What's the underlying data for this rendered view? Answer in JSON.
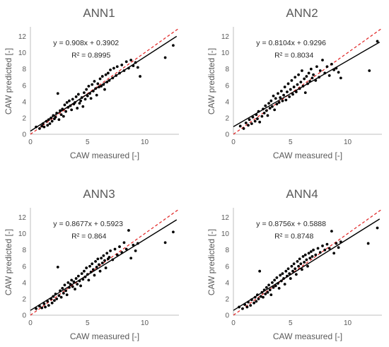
{
  "chart_data": [
    {
      "type": "scatter",
      "title": "ANN1",
      "xlabel": "CAW measured [-]",
      "ylabel": "CAW predicted [-]",
      "xlim": [
        0,
        13
      ],
      "ylim": [
        0,
        13
      ],
      "xticks": [
        "0",
        "5",
        "10"
      ],
      "yticks": [
        "0",
        "2",
        "4",
        "6",
        "8",
        "10",
        "12"
      ],
      "grid": false,
      "trendline": {
        "slope": 0.908,
        "intercept": 0.3902
      },
      "identity_line": true,
      "annotation": {
        "equation": "y = 0.908x + 0.3902",
        "r2": "R² = 0.8995"
      },
      "points": [
        [
          0.5,
          0.9
        ],
        [
          0.8,
          0.7
        ],
        [
          1.0,
          1.0
        ],
        [
          1.1,
          1.3
        ],
        [
          1.2,
          0.9
        ],
        [
          1.4,
          1.6
        ],
        [
          1.5,
          1.1
        ],
        [
          1.6,
          1.8
        ],
        [
          1.7,
          1.3
        ],
        [
          1.8,
          2.0
        ],
        [
          1.9,
          1.6
        ],
        [
          2.0,
          2.3
        ],
        [
          2.1,
          1.9
        ],
        [
          2.2,
          2.1
        ],
        [
          2.3,
          2.6
        ],
        [
          2.4,
          5.0
        ],
        [
          2.5,
          1.8
        ],
        [
          2.6,
          2.9
        ],
        [
          2.7,
          2.4
        ],
        [
          2.8,
          3.1
        ],
        [
          2.9,
          2.2
        ],
        [
          3.0,
          3.6
        ],
        [
          3.1,
          2.8
        ],
        [
          3.2,
          3.9
        ],
        [
          3.3,
          3.3
        ],
        [
          3.4,
          4.1
        ],
        [
          3.5,
          3.5
        ],
        [
          3.6,
          3.0
        ],
        [
          3.7,
          4.3
        ],
        [
          3.8,
          3.7
        ],
        [
          3.9,
          3.9
        ],
        [
          4.0,
          4.6
        ],
        [
          4.1,
          3.2
        ],
        [
          4.2,
          4.9
        ],
        [
          4.3,
          3.8
        ],
        [
          4.4,
          4.1
        ],
        [
          4.5,
          4.5
        ],
        [
          4.6,
          3.4
        ],
        [
          4.7,
          5.1
        ],
        [
          4.8,
          4.3
        ],
        [
          4.9,
          5.5
        ],
        [
          5.0,
          4.7
        ],
        [
          5.1,
          5.9
        ],
        [
          5.2,
          5.0
        ],
        [
          5.3,
          4.4
        ],
        [
          5.4,
          6.1
        ],
        [
          5.5,
          5.3
        ],
        [
          5.6,
          6.5
        ],
        [
          5.7,
          5.6
        ],
        [
          5.8,
          4.8
        ],
        [
          5.9,
          6.2
        ],
        [
          6.0,
          5.8
        ],
        [
          6.1,
          6.8
        ],
        [
          6.2,
          5.9
        ],
        [
          6.3,
          7.1
        ],
        [
          6.4,
          6.1
        ],
        [
          6.5,
          5.5
        ],
        [
          6.6,
          7.3
        ],
        [
          6.7,
          6.4
        ],
        [
          6.8,
          7.5
        ],
        [
          6.9,
          6.6
        ],
        [
          7.0,
          7.9
        ],
        [
          7.2,
          6.9
        ],
        [
          7.3,
          8.1
        ],
        [
          7.5,
          7.2
        ],
        [
          7.6,
          8.3
        ],
        [
          7.8,
          7.5
        ],
        [
          8.0,
          8.5
        ],
        [
          8.2,
          7.8
        ],
        [
          8.4,
          8.9
        ],
        [
          8.6,
          8.1
        ],
        [
          8.8,
          9.1
        ],
        [
          9.0,
          8.4
        ],
        [
          9.2,
          8.8
        ],
        [
          9.4,
          8.2
        ],
        [
          9.6,
          7.1
        ],
        [
          11.8,
          9.4
        ],
        [
          12.5,
          10.9
        ]
      ]
    },
    {
      "type": "scatter",
      "title": "ANN2",
      "xlabel": "CAW measured [-]",
      "ylabel": "CAW predicted [-]",
      "xlim": [
        0,
        13
      ],
      "ylim": [
        0,
        13
      ],
      "xticks": [
        "0",
        "5",
        "10"
      ],
      "yticks": [
        "0",
        "2",
        "4",
        "6",
        "8",
        "10",
        "12"
      ],
      "grid": false,
      "trendline": {
        "slope": 0.8104,
        "intercept": 0.9296
      },
      "identity_line": true,
      "annotation": {
        "equation": "y = 0.8104x + 0.9296",
        "r2": "R² = 0.8034"
      },
      "points": [
        [
          0.6,
          1.0
        ],
        [
          0.9,
          0.7
        ],
        [
          1.1,
          1.4
        ],
        [
          1.3,
          1.1
        ],
        [
          1.4,
          1.8
        ],
        [
          1.6,
          1.3
        ],
        [
          1.7,
          2.1
        ],
        [
          1.9,
          1.6
        ],
        [
          2.0,
          2.4
        ],
        [
          2.1,
          1.9
        ],
        [
          2.2,
          2.8
        ],
        [
          2.3,
          1.5
        ],
        [
          2.5,
          2.2
        ],
        [
          2.6,
          3.1
        ],
        [
          2.7,
          2.6
        ],
        [
          2.8,
          3.5
        ],
        [
          2.9,
          2.9
        ],
        [
          3.0,
          2.3
        ],
        [
          3.1,
          3.8
        ],
        [
          3.2,
          3.2
        ],
        [
          3.3,
          4.1
        ],
        [
          3.4,
          3.4
        ],
        [
          3.5,
          4.7
        ],
        [
          3.6,
          3.0
        ],
        [
          3.7,
          4.4
        ],
        [
          3.8,
          3.7
        ],
        [
          3.9,
          5.0
        ],
        [
          4.0,
          3.9
        ],
        [
          4.1,
          4.5
        ],
        [
          4.2,
          5.3
        ],
        [
          4.3,
          4.1
        ],
        [
          4.4,
          4.8
        ],
        [
          4.5,
          5.8
        ],
        [
          4.6,
          4.2
        ],
        [
          4.7,
          5.2
        ],
        [
          4.8,
          6.2
        ],
        [
          4.9,
          4.6
        ],
        [
          5.0,
          5.5
        ],
        [
          5.1,
          6.6
        ],
        [
          5.2,
          4.9
        ],
        [
          5.3,
          5.8
        ],
        [
          5.4,
          7.0
        ],
        [
          5.5,
          5.2
        ],
        [
          5.6,
          6.1
        ],
        [
          5.7,
          7.3
        ],
        [
          5.8,
          5.6
        ],
        [
          5.9,
          6.4
        ],
        [
          6.0,
          7.8
        ],
        [
          6.1,
          5.9
        ],
        [
          6.2,
          6.8
        ],
        [
          6.3,
          5.1
        ],
        [
          6.4,
          7.1
        ],
        [
          6.5,
          6.2
        ],
        [
          6.6,
          7.5
        ],
        [
          6.7,
          6.5
        ],
        [
          6.8,
          8.0
        ],
        [
          6.9,
          6.9
        ],
        [
          7.0,
          7.3
        ],
        [
          7.2,
          6.6
        ],
        [
          7.3,
          8.3
        ],
        [
          7.5,
          7.0
        ],
        [
          7.6,
          7.8
        ],
        [
          7.8,
          9.1
        ],
        [
          8.0,
          7.5
        ],
        [
          8.2,
          8.3
        ],
        [
          8.4,
          7.2
        ],
        [
          8.6,
          8.6
        ],
        [
          8.8,
          7.9
        ],
        [
          9.0,
          8.1
        ],
        [
          9.2,
          7.6
        ],
        [
          9.4,
          6.9
        ],
        [
          11.9,
          7.8
        ],
        [
          12.6,
          11.4
        ]
      ]
    },
    {
      "type": "scatter",
      "title": "ANN3",
      "xlabel": "CAW measured [-]",
      "ylabel": "CAW predicted [-]",
      "xlim": [
        0,
        13
      ],
      "ylim": [
        0,
        13
      ],
      "xticks": [
        "0",
        "5",
        "10"
      ],
      "yticks": [
        "0",
        "2",
        "4",
        "6",
        "8",
        "10",
        "12"
      ],
      "grid": false,
      "trendline": {
        "slope": 0.8677,
        "intercept": 0.5923
      },
      "identity_line": true,
      "annotation": {
        "equation": "y = 0.8677x + 0.5923",
        "r2": "R² = 0.864"
      },
      "points": [
        [
          0.5,
          0.8
        ],
        [
          0.8,
          1.1
        ],
        [
          1.0,
          0.9
        ],
        [
          1.2,
          1.4
        ],
        [
          1.3,
          1.0
        ],
        [
          1.5,
          1.7
        ],
        [
          1.6,
          1.2
        ],
        [
          1.8,
          2.0
        ],
        [
          1.9,
          1.5
        ],
        [
          2.0,
          2.3
        ],
        [
          2.1,
          1.8
        ],
        [
          2.2,
          2.6
        ],
        [
          2.3,
          2.0
        ],
        [
          2.4,
          5.9
        ],
        [
          2.5,
          2.4
        ],
        [
          2.6,
          3.0
        ],
        [
          2.7,
          2.2
        ],
        [
          2.8,
          3.3
        ],
        [
          2.9,
          2.7
        ],
        [
          3.0,
          3.7
        ],
        [
          3.1,
          3.0
        ],
        [
          3.2,
          2.5
        ],
        [
          3.3,
          4.0
        ],
        [
          3.4,
          3.4
        ],
        [
          3.5,
          3.8
        ],
        [
          3.6,
          4.3
        ],
        [
          3.7,
          3.5
        ],
        [
          3.8,
          4.1
        ],
        [
          3.9,
          3.2
        ],
        [
          4.0,
          4.5
        ],
        [
          4.1,
          3.8
        ],
        [
          4.2,
          4.8
        ],
        [
          4.3,
          4.2
        ],
        [
          4.4,
          3.6
        ],
        [
          4.5,
          5.1
        ],
        [
          4.6,
          4.4
        ],
        [
          4.7,
          5.4
        ],
        [
          4.8,
          4.7
        ],
        [
          4.9,
          5.8
        ],
        [
          5.0,
          5.0
        ],
        [
          5.1,
          4.3
        ],
        [
          5.2,
          6.0
        ],
        [
          5.3,
          5.3
        ],
        [
          5.4,
          6.3
        ],
        [
          5.5,
          5.6
        ],
        [
          5.6,
          4.9
        ],
        [
          5.7,
          6.6
        ],
        [
          5.8,
          5.9
        ],
        [
          5.9,
          6.9
        ],
        [
          6.0,
          6.2
        ],
        [
          6.1,
          5.4
        ],
        [
          6.2,
          7.0
        ],
        [
          6.3,
          6.4
        ],
        [
          6.4,
          7.3
        ],
        [
          6.5,
          6.7
        ],
        [
          6.6,
          5.8
        ],
        [
          6.7,
          7.6
        ],
        [
          6.8,
          6.9
        ],
        [
          6.9,
          7.1
        ],
        [
          7.0,
          7.9
        ],
        [
          7.2,
          6.8
        ],
        [
          7.4,
          8.1
        ],
        [
          7.6,
          7.4
        ],
        [
          7.8,
          8.4
        ],
        [
          8.0,
          7.7
        ],
        [
          8.2,
          8.9
        ],
        [
          8.4,
          8.1
        ],
        [
          8.6,
          10.4
        ],
        [
          8.8,
          7.0
        ],
        [
          9.0,
          8.6
        ],
        [
          9.2,
          7.9
        ],
        [
          9.4,
          8.8
        ],
        [
          11.8,
          8.9
        ],
        [
          12.5,
          10.2
        ]
      ]
    },
    {
      "type": "scatter",
      "title": "ANN4",
      "xlabel": "CAW measured [-]",
      "ylabel": "CAW predicted [-]",
      "xlim": [
        0,
        13
      ],
      "ylim": [
        0,
        13
      ],
      "xticks": [
        "0",
        "5",
        "10"
      ],
      "yticks": [
        "0",
        "2",
        "4",
        "6",
        "8",
        "10",
        "12"
      ],
      "grid": false,
      "trendline": {
        "slope": 0.8756,
        "intercept": 0.5888
      },
      "identity_line": true,
      "annotation": {
        "equation": "y = 0.8756x + 0.5888",
        "r2": "R² = 0.8748"
      },
      "points": [
        [
          0.5,
          1.0
        ],
        [
          0.8,
          0.8
        ],
        [
          1.0,
          1.3
        ],
        [
          1.2,
          1.0
        ],
        [
          1.3,
          1.6
        ],
        [
          1.5,
          1.2
        ],
        [
          1.6,
          1.9
        ],
        [
          1.8,
          1.5
        ],
        [
          1.9,
          2.2
        ],
        [
          2.0,
          1.7
        ],
        [
          2.1,
          2.5
        ],
        [
          2.2,
          2.0
        ],
        [
          2.3,
          5.4
        ],
        [
          2.4,
          2.3
        ],
        [
          2.5,
          2.8
        ],
        [
          2.6,
          2.2
        ],
        [
          2.7,
          3.1
        ],
        [
          2.8,
          2.6
        ],
        [
          2.9,
          3.4
        ],
        [
          3.0,
          2.8
        ],
        [
          3.1,
          3.7
        ],
        [
          3.2,
          3.1
        ],
        [
          3.3,
          2.5
        ],
        [
          3.4,
          4.0
        ],
        [
          3.5,
          3.4
        ],
        [
          3.6,
          4.3
        ],
        [
          3.7,
          3.6
        ],
        [
          3.8,
          4.6
        ],
        [
          3.9,
          3.9
        ],
        [
          4.0,
          3.3
        ],
        [
          4.1,
          4.9
        ],
        [
          4.2,
          4.2
        ],
        [
          4.3,
          5.1
        ],
        [
          4.4,
          4.5
        ],
        [
          4.5,
          3.8
        ],
        [
          4.6,
          5.4
        ],
        [
          4.7,
          4.8
        ],
        [
          4.8,
          5.7
        ],
        [
          4.9,
          5.1
        ],
        [
          5.0,
          4.5
        ],
        [
          5.1,
          6.0
        ],
        [
          5.2,
          5.4
        ],
        [
          5.3,
          6.3
        ],
        [
          5.4,
          5.7
        ],
        [
          5.5,
          5.0
        ],
        [
          5.6,
          6.6
        ],
        [
          5.7,
          6.0
        ],
        [
          5.8,
          6.9
        ],
        [
          5.9,
          6.3
        ],
        [
          6.0,
          5.6
        ],
        [
          6.1,
          7.2
        ],
        [
          6.2,
          6.5
        ],
        [
          6.3,
          7.4
        ],
        [
          6.4,
          6.8
        ],
        [
          6.5,
          6.0
        ],
        [
          6.6,
          7.6
        ],
        [
          6.7,
          7.0
        ],
        [
          6.8,
          7.8
        ],
        [
          6.9,
          7.2
        ],
        [
          7.0,
          8.0
        ],
        [
          7.2,
          7.4
        ],
        [
          7.4,
          8.2
        ],
        [
          7.6,
          7.7
        ],
        [
          7.8,
          8.5
        ],
        [
          8.0,
          8.0
        ],
        [
          8.2,
          8.7
        ],
        [
          8.4,
          8.2
        ],
        [
          8.6,
          10.3
        ],
        [
          8.8,
          7.6
        ],
        [
          9.0,
          8.8
        ],
        [
          9.2,
          8.3
        ],
        [
          9.4,
          9.0
        ],
        [
          11.8,
          8.8
        ],
        [
          12.6,
          10.7
        ]
      ]
    }
  ]
}
